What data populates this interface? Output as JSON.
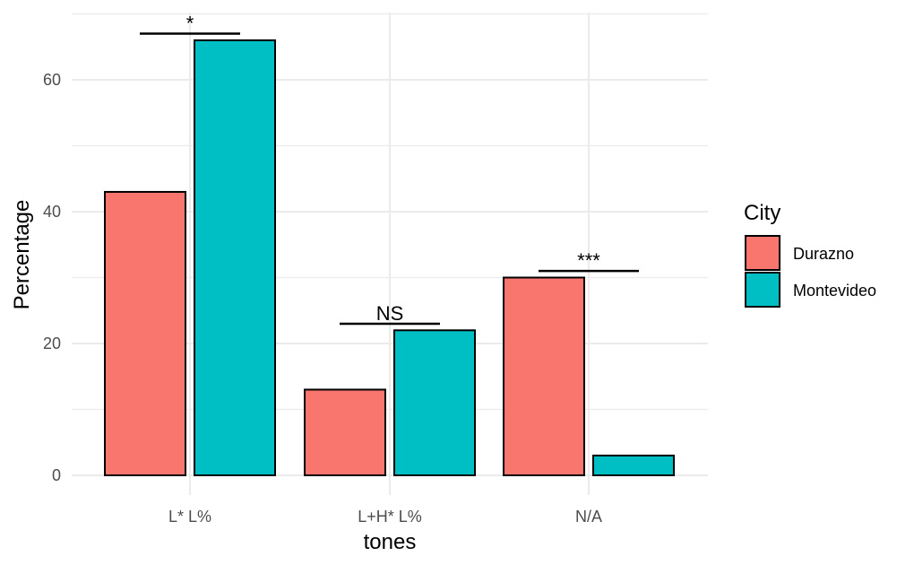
{
  "chart_data": {
    "type": "bar",
    "categories": [
      "L* L%",
      "L+H* L%",
      "N/A"
    ],
    "series": [
      {
        "name": "Durazno",
        "values": [
          43,
          13,
          30
        ],
        "color": "#F8766D"
      },
      {
        "name": "Montevideo",
        "values": [
          66,
          22,
          3
        ],
        "color": "#00BFC4"
      }
    ],
    "xlabel": "tones",
    "ylabel": "Percentage",
    "ylim": [
      0,
      70
    ],
    "yticks": [
      0,
      20,
      40,
      60
    ],
    "grid": true,
    "legend": {
      "title": "City",
      "placement": "right"
    },
    "annotations": [
      {
        "category": "L* L%",
        "label": "*",
        "y": 67
      },
      {
        "category": "L+H* L%",
        "label": "NS",
        "y": 23
      },
      {
        "category": "N/A",
        "label": "***",
        "y": 31
      }
    ]
  }
}
